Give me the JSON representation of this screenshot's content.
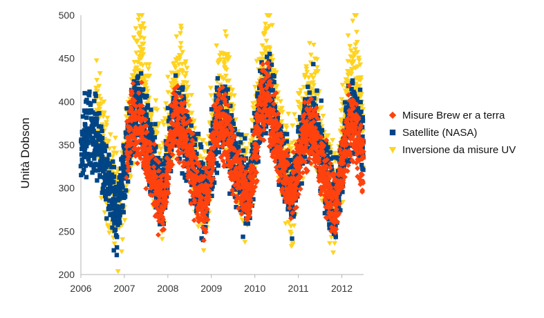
{
  "chart_data": {
    "type": "scatter",
    "title": "",
    "xlabel": "",
    "ylabel": "Unità Dobson",
    "xlim": [
      2006,
      2012.5
    ],
    "ylim": [
      200,
      500
    ],
    "x_ticks": [
      "2006",
      "2007",
      "2008",
      "2009",
      "2010",
      "2011",
      "2012"
    ],
    "y_ticks": [
      "200",
      "250",
      "300",
      "350",
      "400",
      "450",
      "500"
    ],
    "grid": false,
    "legend_position": "right",
    "series": [
      {
        "name": "Inversione da misure UV",
        "color": "#FFD320",
        "marker": "triangle-down",
        "x_start": 2006.35,
        "x_end": 2012.5,
        "seasonal_max": [
          [
            2006.35,
            390
          ],
          [
            2006.6,
            320
          ],
          [
            2006.85,
            275
          ],
          [
            2007.15,
            370
          ],
          [
            2007.35,
            475
          ],
          [
            2007.6,
            360
          ],
          [
            2007.85,
            300
          ],
          [
            2008.15,
            400
          ],
          [
            2008.3,
            420
          ],
          [
            2008.6,
            330
          ],
          [
            2008.85,
            285
          ],
          [
            2009.15,
            400
          ],
          [
            2009.3,
            420
          ],
          [
            2009.6,
            330
          ],
          [
            2009.85,
            290
          ],
          [
            2010.15,
            430
          ],
          [
            2010.3,
            455
          ],
          [
            2010.6,
            350
          ],
          [
            2010.85,
            295
          ],
          [
            2011.15,
            390
          ],
          [
            2011.35,
            410
          ],
          [
            2011.6,
            330
          ],
          [
            2011.85,
            280
          ],
          [
            2012.15,
            400
          ],
          [
            2012.3,
            440
          ],
          [
            2012.5,
            360
          ]
        ],
        "spread": 55
      },
      {
        "name": "Satellite (NASA)",
        "color": "#004586",
        "marker": "square",
        "x_start": 2006.0,
        "x_end": 2012.5,
        "seasonal_max": [
          [
            2006.0,
            340
          ],
          [
            2006.15,
            370
          ],
          [
            2006.35,
            360
          ],
          [
            2006.6,
            310
          ],
          [
            2006.85,
            270
          ],
          [
            2007.15,
            370
          ],
          [
            2007.35,
            400
          ],
          [
            2007.6,
            340
          ],
          [
            2007.85,
            290
          ],
          [
            2008.15,
            380
          ],
          [
            2008.3,
            380
          ],
          [
            2008.6,
            320
          ],
          [
            2008.85,
            285
          ],
          [
            2009.15,
            380
          ],
          [
            2009.3,
            380
          ],
          [
            2009.6,
            320
          ],
          [
            2009.85,
            290
          ],
          [
            2010.15,
            400
          ],
          [
            2010.3,
            410
          ],
          [
            2010.6,
            340
          ],
          [
            2010.85,
            295
          ],
          [
            2011.15,
            370
          ],
          [
            2011.35,
            380
          ],
          [
            2011.6,
            320
          ],
          [
            2011.85,
            280
          ],
          [
            2012.15,
            380
          ],
          [
            2012.3,
            390
          ],
          [
            2012.5,
            340
          ]
        ],
        "spread": 40
      },
      {
        "name": "Misure Brew er a terra",
        "color": "#FF420E",
        "marker": "diamond",
        "x_start": 2007.05,
        "x_end": 2012.5,
        "seasonal_max": [
          [
            2007.05,
            350
          ],
          [
            2007.2,
            380
          ],
          [
            2007.4,
            370
          ],
          [
            2007.6,
            320
          ],
          [
            2007.9,
            275
          ],
          [
            2008.15,
            380
          ],
          [
            2008.3,
            370
          ],
          [
            2008.6,
            315
          ],
          [
            2008.85,
            280
          ],
          [
            2009.15,
            380
          ],
          [
            2009.3,
            370
          ],
          [
            2009.6,
            315
          ],
          [
            2009.85,
            285
          ],
          [
            2010.15,
            400
          ],
          [
            2010.3,
            400
          ],
          [
            2010.6,
            335
          ],
          [
            2010.85,
            290
          ],
          [
            2011.15,
            365
          ],
          [
            2011.35,
            365
          ],
          [
            2011.6,
            310
          ],
          [
            2011.85,
            275
          ],
          [
            2012.15,
            370
          ],
          [
            2012.3,
            375
          ],
          [
            2012.5,
            320
          ]
        ],
        "spread": 35
      }
    ]
  }
}
